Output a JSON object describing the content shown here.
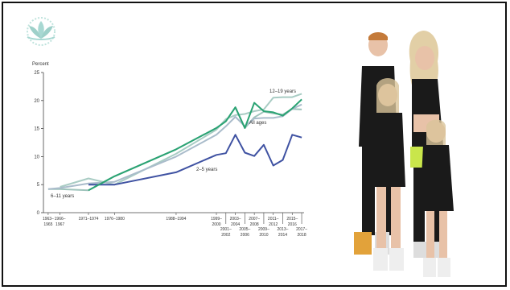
{
  "logo": {
    "icon": "lotus-logo-icon",
    "color": "#a8d8d2"
  },
  "chart_data": {
    "type": "line",
    "title": "",
    "ylabel": "Percent",
    "xlabel": "",
    "ylim": [
      0,
      25
    ],
    "yticks": [
      0,
      5,
      10,
      15,
      20,
      25
    ],
    "grid": false,
    "legend": "inline labels",
    "x_range": [
      1963,
      2018
    ],
    "x_ticks": [
      {
        "label": [
          "1963–",
          "1965"
        ],
        "x": 1964
      },
      {
        "label": [
          "1966–",
          "1967"
        ],
        "x": 1966.5
      },
      {
        "label": [
          "1971–1974"
        ],
        "x": 1972.5
      },
      {
        "label": [
          "1976–1980"
        ],
        "x": 1978
      },
      {
        "label": [
          "1988–1994"
        ],
        "x": 1991
      },
      {
        "label": [
          "1999–",
          "2000"
        ],
        "x": 1999.5
      },
      {
        "label": [
          "2001–",
          "2002"
        ],
        "x": 2001.5
      },
      {
        "label": [
          "2003–",
          "2004"
        ],
        "x": 2003.5
      },
      {
        "label": [
          "2005–",
          "2006"
        ],
        "x": 2005.5
      },
      {
        "label": [
          "2007–",
          "2008"
        ],
        "x": 2007.5
      },
      {
        "label": [
          "2009–",
          "2010"
        ],
        "x": 2009.5
      },
      {
        "label": [
          "2011–",
          "2012"
        ],
        "x": 2011.5
      },
      {
        "label": [
          "2013–",
          "2014"
        ],
        "x": 2013.5
      },
      {
        "label": [
          "2015–",
          "2016"
        ],
        "x": 2015.5
      },
      {
        "label": [
          "2017–",
          "2018"
        ],
        "x": 2017.5
      }
    ],
    "series": [
      {
        "name": "6–11 years",
        "color": "#9ec3bb",
        "x": [
          1964,
          1966.5,
          1972.5,
          1978,
          1991,
          1999.5,
          2001.5,
          2003.5,
          2005.5,
          2007.5,
          2009.5,
          2011.5,
          2013.5,
          2015.5,
          2017.5
        ],
        "values": [
          4.2,
          4.2,
          4.0,
          6.5,
          11.3,
          15.1,
          16.3,
          18.8,
          15.1,
          17.0,
          18.0,
          17.7,
          17.5,
          18.5,
          18.4
        ]
      },
      {
        "name": "12–19 years",
        "color": "#a9ccc4",
        "x": [
          1966.5,
          1972.5,
          1978,
          1991,
          1999.5,
          2001.5,
          2003.5,
          2005.5,
          2007.5,
          2009.5,
          2011.5,
          2013.5,
          2015.5,
          2017.5
        ],
        "values": [
          4.6,
          6.1,
          5.0,
          10.5,
          14.8,
          16.7,
          17.4,
          17.6,
          18.1,
          18.4,
          20.5,
          20.6,
          20.6,
          21.2
        ]
      },
      {
        "name": "All ages",
        "color": "#aabccb",
        "x": [
          1964,
          1966.5,
          1972.5,
          1978,
          1991,
          1999.5,
          2001.5,
          2003.5,
          2005.5,
          2007.5,
          2009.5,
          2011.5,
          2013.5,
          2015.5,
          2017.5
        ],
        "values": [
          4.2,
          4.4,
          5.2,
          5.5,
          10.0,
          13.9,
          15.4,
          17.1,
          15.4,
          16.8,
          16.9,
          16.9,
          17.2,
          18.5,
          19.3
        ]
      },
      {
        "name": "2–5 years",
        "color": "#3f52a2",
        "x": [
          1972.5,
          1978,
          1991,
          1999.5,
          2001.5,
          2003.5,
          2005.5,
          2007.5,
          2009.5,
          2011.5,
          2013.5,
          2015.5,
          2017.5
        ],
        "values": [
          5.0,
          5.0,
          7.2,
          10.3,
          10.6,
          13.9,
          10.7,
          10.1,
          12.1,
          8.4,
          9.4,
          13.9,
          13.4
        ]
      },
      {
        "name": "",
        "color": "#2aa373",
        "x": [
          1972.5,
          1978,
          1991,
          1999.5,
          2001.5,
          2003.5,
          2005.5,
          2007.5,
          2009.5,
          2011.5,
          2013.5,
          2015.5,
          2017.5
        ],
        "values": [
          4.0,
          6.5,
          11.3,
          15.1,
          16.3,
          18.8,
          15.1,
          19.6,
          18.1,
          17.9,
          17.3,
          18.6,
          20.2
        ]
      }
    ],
    "annotations": [
      "12–19 years",
      "All ages",
      "2–5 years",
      "6–11 years"
    ]
  },
  "photo": {
    "shirt_color": "#1a1a1a",
    "accent": "#c9e64b",
    "skin": "#e8c2a8"
  }
}
